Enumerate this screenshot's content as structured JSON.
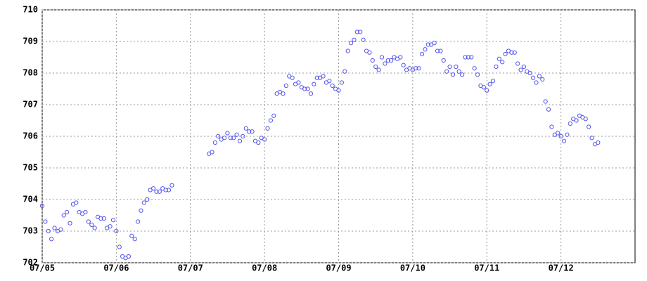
{
  "chart_data": {
    "type": "scatter",
    "color": "#5555ee",
    "grid": true,
    "xlim": [
      0,
      192
    ],
    "ylim": [
      702,
      710
    ],
    "xticks": [
      {
        "value": 0,
        "label": "07/05"
      },
      {
        "value": 24,
        "label": "07/06"
      },
      {
        "value": 48,
        "label": "07/07"
      },
      {
        "value": 72,
        "label": "07/08"
      },
      {
        "value": 96,
        "label": "07/09"
      },
      {
        "value": 120,
        "label": "07/10"
      },
      {
        "value": 144,
        "label": "07/11"
      },
      {
        "value": 168,
        "label": "07/12"
      }
    ],
    "yticks": [
      702,
      703,
      704,
      705,
      706,
      707,
      708,
      709,
      710
    ],
    "x": [
      0,
      1,
      2,
      3,
      4,
      5,
      6,
      7,
      8,
      9,
      10,
      11,
      12,
      13,
      14,
      15,
      16,
      17,
      18,
      19,
      20,
      21,
      22,
      23,
      24,
      25,
      26,
      27,
      28,
      29,
      30,
      31,
      32,
      33,
      34,
      35,
      36,
      37,
      38,
      39,
      40,
      41,
      42,
      54,
      55,
      56,
      57,
      58,
      59,
      60,
      61,
      62,
      63,
      64,
      65,
      66,
      67,
      68,
      69,
      70,
      71,
      72,
      73,
      74,
      75,
      76,
      77,
      78,
      79,
      80,
      81,
      82,
      83,
      84,
      85,
      86,
      87,
      88,
      89,
      90,
      91,
      92,
      93,
      94,
      95,
      96,
      97,
      98,
      99,
      100,
      101,
      102,
      103,
      104,
      105,
      106,
      107,
      108,
      109,
      110,
      111,
      112,
      113,
      114,
      115,
      116,
      117,
      118,
      119,
      120,
      121,
      122,
      123,
      124,
      125,
      126,
      127,
      128,
      129,
      130,
      131,
      132,
      133,
      134,
      135,
      136,
      137,
      138,
      139,
      140,
      141,
      142,
      143,
      144,
      145,
      146,
      147,
      148,
      149,
      150,
      151,
      152,
      153,
      154,
      155,
      156,
      157,
      158,
      159,
      160,
      161,
      162,
      163,
      164,
      165,
      166,
      167,
      168,
      169,
      170,
      171,
      172,
      173,
      174,
      175,
      176,
      177,
      178,
      179,
      180
    ],
    "values": [
      703.8,
      703.3,
      703.0,
      702.75,
      703.1,
      703.0,
      703.05,
      703.5,
      703.6,
      703.25,
      703.85,
      703.9,
      703.6,
      703.55,
      703.6,
      703.3,
      703.2,
      703.1,
      703.45,
      703.4,
      703.4,
      703.1,
      703.15,
      703.35,
      703.0,
      702.5,
      702.2,
      702.15,
      702.2,
      702.85,
      702.75,
      703.3,
      703.65,
      703.9,
      704.0,
      704.3,
      704.35,
      704.25,
      704.25,
      704.35,
      704.3,
      704.3,
      704.45,
      705.45,
      705.5,
      705.8,
      706.0,
      705.9,
      705.95,
      706.1,
      705.95,
      705.95,
      706.05,
      705.85,
      706.0,
      706.25,
      706.15,
      706.15,
      705.85,
      705.8,
      705.95,
      705.9,
      706.25,
      706.5,
      706.65,
      707.35,
      707.4,
      707.35,
      707.6,
      707.9,
      707.85,
      707.65,
      707.7,
      707.55,
      707.5,
      707.5,
      707.35,
      707.65,
      707.85,
      707.85,
      707.9,
      707.7,
      707.75,
      707.6,
      707.5,
      707.45,
      707.7,
      708.05,
      708.7,
      708.95,
      709.05,
      709.3,
      709.3,
      709.05,
      708.7,
      708.65,
      708.4,
      708.2,
      708.1,
      708.5,
      708.3,
      708.4,
      708.4,
      708.5,
      708.45,
      708.5,
      708.25,
      708.1,
      708.15,
      708.1,
      708.15,
      708.15,
      708.6,
      708.75,
      708.9,
      708.9,
      708.95,
      708.7,
      708.7,
      708.4,
      708.05,
      708.2,
      707.95,
      708.2,
      708.05,
      707.95,
      708.5,
      708.5,
      708.5,
      708.15,
      707.95,
      707.6,
      707.55,
      707.45,
      707.65,
      707.75,
      708.2,
      708.45,
      708.35,
      708.6,
      708.7,
      708.65,
      708.65,
      708.3,
      708.1,
      708.2,
      708.05,
      708.0,
      707.85,
      707.7,
      707.9,
      707.8,
      707.1,
      706.85,
      706.3,
      706.05,
      706.1,
      706.0,
      705.85,
      706.05,
      706.4,
      706.55,
      706.5,
      706.65,
      706.6,
      706.55,
      706.3,
      705.95,
      705.75,
      705.8
    ]
  }
}
